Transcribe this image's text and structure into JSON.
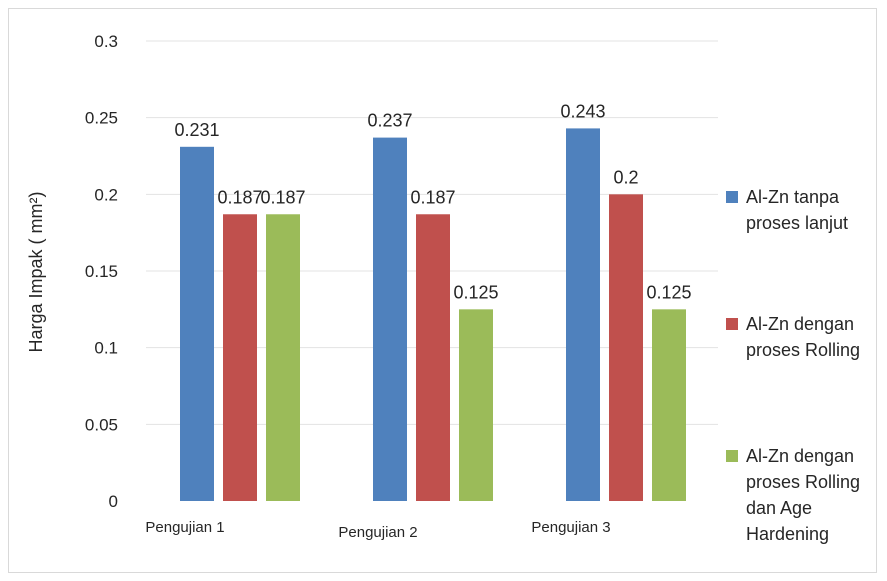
{
  "chart_data": {
    "type": "bar",
    "title": "",
    "xlabel": "",
    "ylabel": "Harga Impak ( mm²)",
    "ylim": [
      0,
      0.3
    ],
    "yticks": [
      "0",
      "0.05",
      "0.1",
      "0.15",
      "0.2",
      "0.25",
      "0.3"
    ],
    "grid": true,
    "legend_position": "right",
    "categories": [
      "Pengujian 1",
      "Pengujian 2",
      "Pengujian 3"
    ],
    "series": [
      {
        "name": "Al-Zn tanpa proses lanjut",
        "legend_lines": [
          "Al-Zn tanpa",
          "proses lanjut"
        ],
        "color": "#4f81bd",
        "values": [
          0.231,
          0.237,
          0.243
        ],
        "labels": [
          "0.231",
          "0.237",
          "0.243"
        ]
      },
      {
        "name": "Al-Zn dengan proses Rolling",
        "legend_lines": [
          "Al-Zn dengan",
          "proses Rolling"
        ],
        "color": "#c0504d",
        "values": [
          0.187,
          0.187,
          0.2
        ],
        "labels": [
          "0.187",
          "0.187",
          "0.2"
        ]
      },
      {
        "name": "Al-Zn dengan proses Rolling dan Age Hardening",
        "legend_lines": [
          "Al-Zn dengan",
          "proses Rolling",
          "dan Age",
          "Hardening"
        ],
        "color": "#9bbb59",
        "values": [
          0.187,
          0.125,
          0.125
        ],
        "labels": [
          "0.187",
          "0.125",
          "0.125"
        ]
      }
    ]
  }
}
